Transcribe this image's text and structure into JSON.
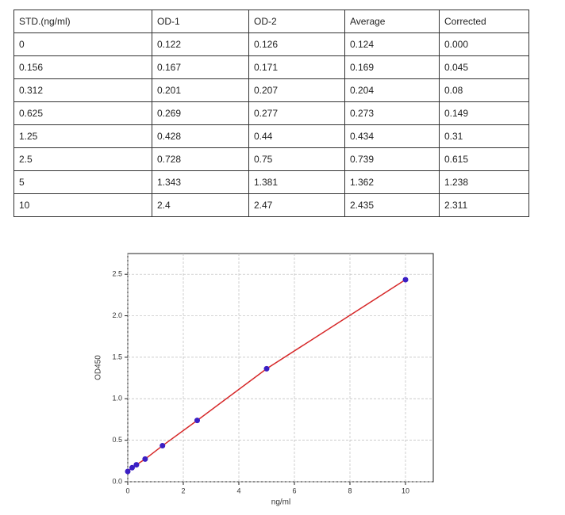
{
  "table": {
    "header": [
      "STD.(ng/ml)",
      "OD-1",
      "OD-2",
      "Average",
      "Corrected"
    ],
    "rows": [
      [
        "0",
        "0.122",
        "0.126",
        "0.124",
        "0.000"
      ],
      [
        "0.156",
        "0.167",
        "0.171",
        "0.169",
        "0.045"
      ],
      [
        "0.312",
        "0.201",
        "0.207",
        "0.204",
        "0.08"
      ],
      [
        "0.625",
        "0.269",
        "0.277",
        "0.273",
        "0.149"
      ],
      [
        "1.25",
        "0.428",
        "0.44",
        "0.434",
        "0.31"
      ],
      [
        "2.5",
        "0.728",
        "0.75",
        "0.739",
        "0.615"
      ],
      [
        "5",
        "1.343",
        "1.381",
        "1.362",
        "1.238"
      ],
      [
        "10",
        "2.4",
        "2.47",
        "2.435",
        "2.311"
      ]
    ]
  },
  "chart_data": {
    "type": "scatter",
    "x_label": "ng/ml",
    "y_label": "OD450",
    "x": [
      0,
      0.156,
      0.312,
      0.625,
      1.25,
      2.5,
      5,
      10
    ],
    "values": [
      0.124,
      0.169,
      0.204,
      0.273,
      0.434,
      0.739,
      1.362,
      2.435
    ],
    "color": "#3b1fc4",
    "line_color": "#d62728",
    "xlim": [
      0,
      11
    ],
    "ylim": [
      0,
      2.75
    ],
    "xticks": [
      0,
      2,
      4,
      6,
      8,
      10
    ],
    "yticks": [
      {
        "value": 0,
        "label": "0.0"
      },
      0.5,
      {
        "value": 1,
        "label": "1.0"
      },
      1.5,
      {
        "value": 2,
        "label": "2.0"
      },
      2.5
    ],
    "grid": true
  }
}
